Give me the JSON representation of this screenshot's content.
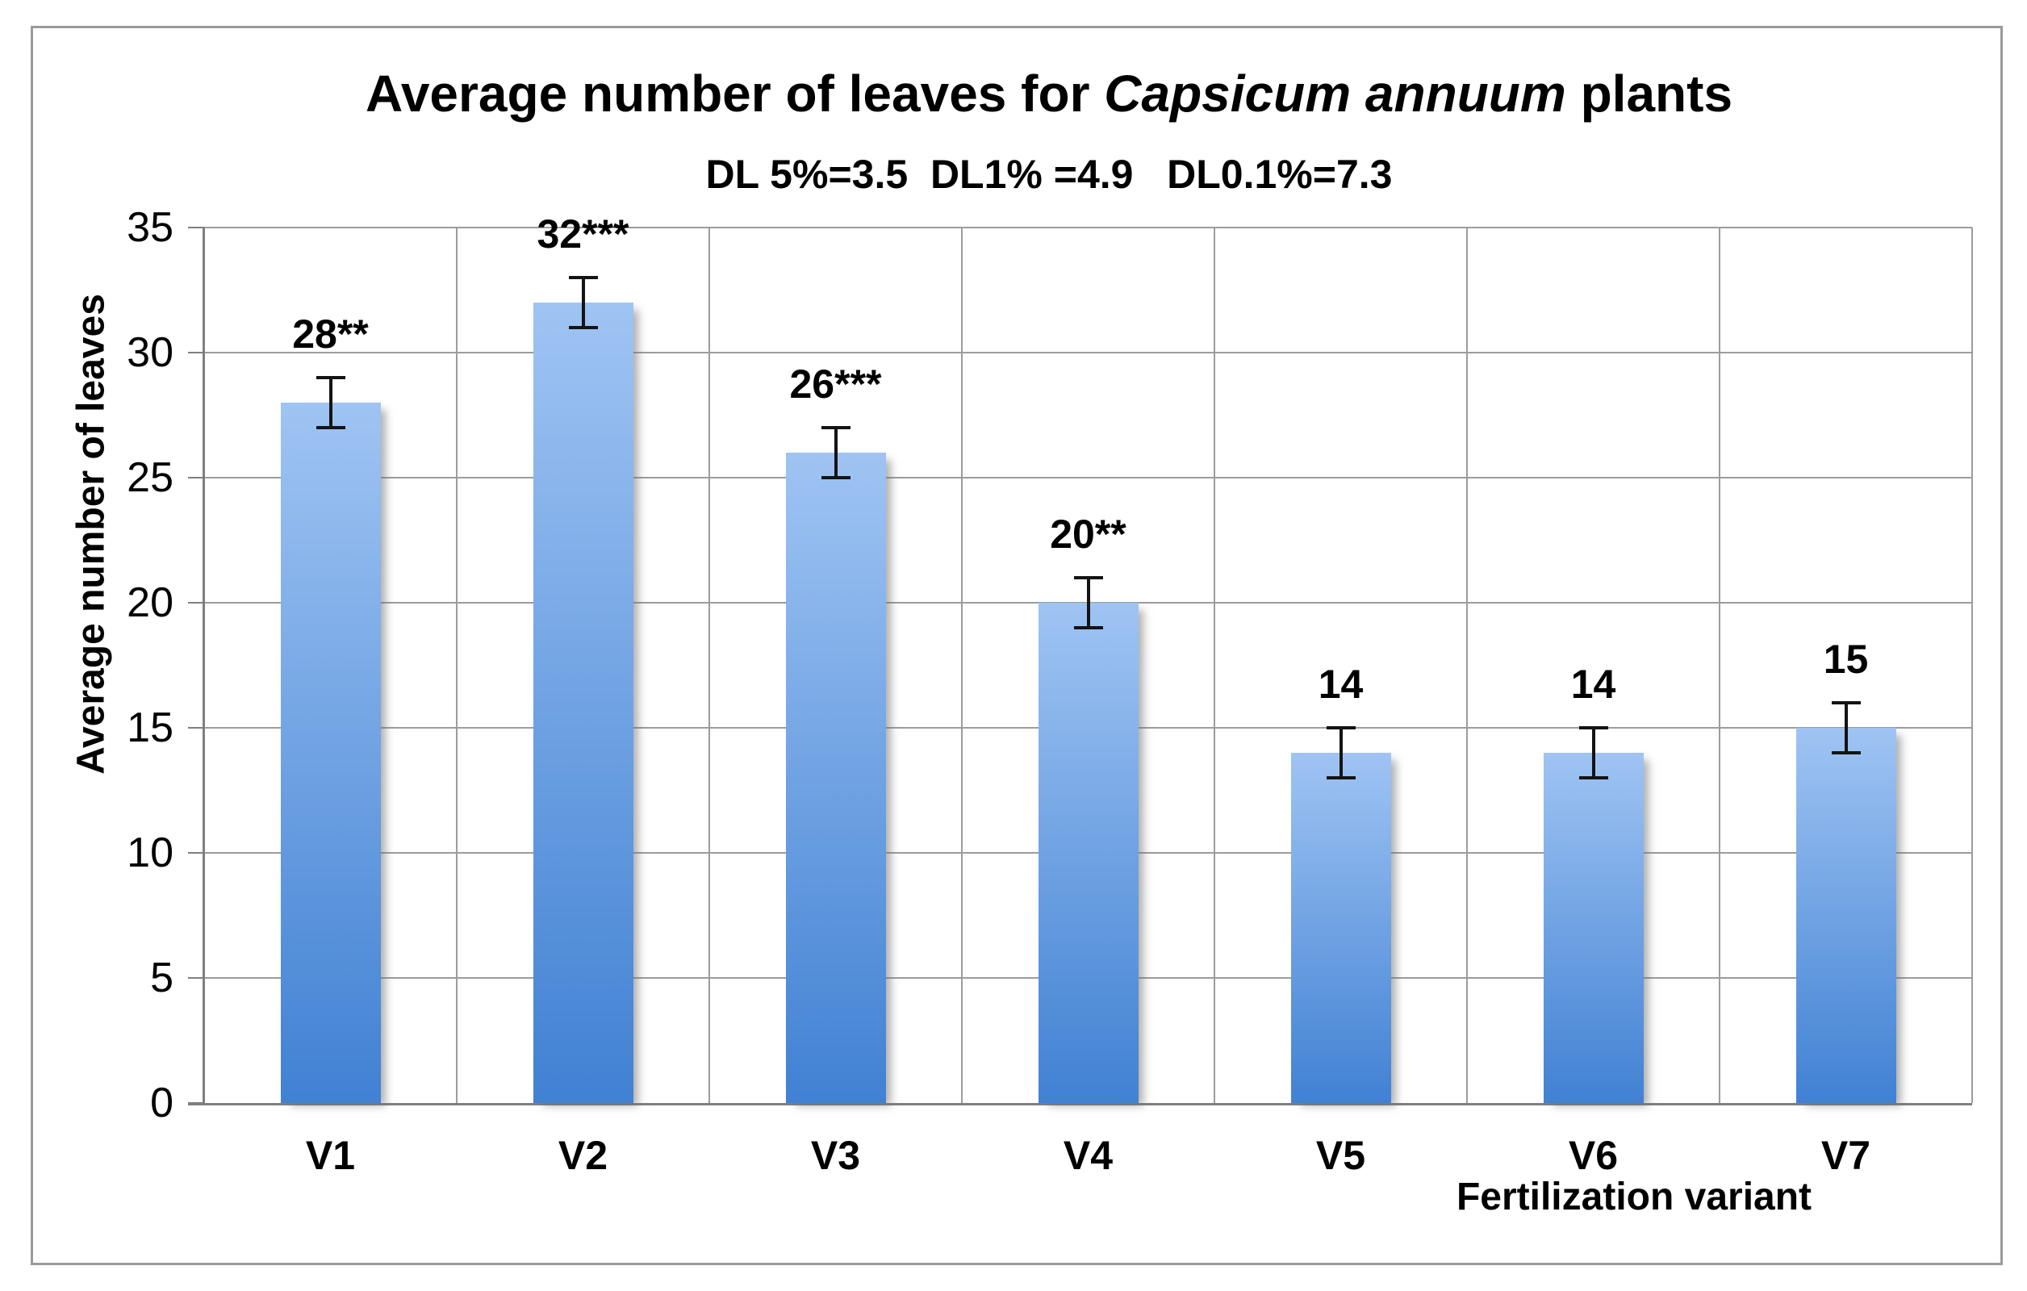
{
  "chart_data": {
    "type": "bar",
    "title_prefix": "Average number of leaves for ",
    "title_italic": "Capsicum annuum",
    "title_suffix": " plants",
    "subtitle": "DL 5%=3.5  DL1% =4.9   DL0.1%=7.3",
    "xlabel": "Fertilization variant",
    "ylabel": "Average number of leaves",
    "categories": [
      "V1",
      "V2",
      "V3",
      "V4",
      "V5",
      "V6",
      "V7"
    ],
    "values": [
      28,
      32,
      26,
      20,
      14,
      14,
      15
    ],
    "bar_labels": [
      "28**",
      "32***",
      "26***",
      "20**",
      "14",
      "14",
      "15"
    ],
    "error_bar_plus_minus": 1,
    "ylim": [
      0,
      35
    ],
    "ytick_step": 5,
    "grid": "horizontal and vertical gridlines, outer frame",
    "legend": "none",
    "colors": {
      "bar_gradient_top": "#9fc4f3",
      "bar_gradient_bottom": "#4181d3",
      "grid_line": "#9c9c9c",
      "axis_line": "#7f7f7f",
      "frame_border": "#9a9a9a",
      "error_bar": "#141414",
      "text": "#000000",
      "background": "#ffffff"
    }
  }
}
